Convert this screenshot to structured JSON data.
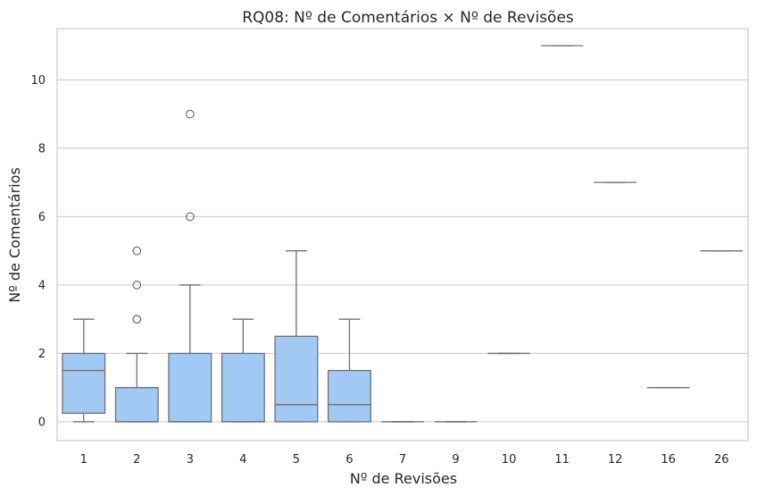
{
  "chart_data": {
    "type": "box",
    "title": "RQ08: Nº de Comentários × Nº de Revisões",
    "xlabel": "Nº de Revisões",
    "ylabel": "Nº de Comentários",
    "categories": [
      "1",
      "2",
      "3",
      "4",
      "5",
      "6",
      "7",
      "9",
      "10",
      "11",
      "12",
      "16",
      "26"
    ],
    "ylim": [
      -0.55,
      11.5
    ],
    "yticks": [
      0,
      2,
      4,
      6,
      8,
      10
    ],
    "grid": "horizontal",
    "box_color": "#a1c9f4",
    "line_color": "#707070",
    "boxes": [
      {
        "category": "1",
        "whisker_low": 0,
        "q1": 0.25,
        "median": 1.5,
        "q3": 2,
        "whisker_high": 3,
        "outliers": []
      },
      {
        "category": "2",
        "whisker_low": 0,
        "q1": 0,
        "median": 0,
        "q3": 1,
        "whisker_high": 2,
        "outliers": [
          3,
          3,
          4,
          5
        ]
      },
      {
        "category": "3",
        "whisker_low": 0,
        "q1": 0,
        "median": 0,
        "q3": 2,
        "whisker_high": 4,
        "outliers": [
          6,
          9
        ]
      },
      {
        "category": "4",
        "whisker_low": 0,
        "q1": 0,
        "median": 0,
        "q3": 2,
        "whisker_high": 3,
        "outliers": []
      },
      {
        "category": "5",
        "whisker_low": 0,
        "q1": 0,
        "median": 0.5,
        "q3": 2.5,
        "whisker_high": 5,
        "outliers": []
      },
      {
        "category": "6",
        "whisker_low": 0,
        "q1": 0,
        "median": 0.5,
        "q3": 1.5,
        "whisker_high": 3,
        "outliers": []
      },
      {
        "category": "7",
        "whisker_low": 0,
        "q1": 0,
        "median": 0,
        "q3": 0,
        "whisker_high": 0,
        "outliers": []
      },
      {
        "category": "9",
        "whisker_low": 0,
        "q1": 0,
        "median": 0,
        "q3": 0,
        "whisker_high": 0,
        "outliers": []
      },
      {
        "category": "10",
        "whisker_low": 2,
        "q1": 2,
        "median": 2,
        "q3": 2,
        "whisker_high": 2,
        "outliers": []
      },
      {
        "category": "11",
        "whisker_low": 11,
        "q1": 11,
        "median": 11,
        "q3": 11,
        "whisker_high": 11,
        "outliers": []
      },
      {
        "category": "12",
        "whisker_low": 7,
        "q1": 7,
        "median": 7,
        "q3": 7,
        "whisker_high": 7,
        "outliers": []
      },
      {
        "category": "16",
        "whisker_low": 1,
        "q1": 1,
        "median": 1,
        "q3": 1,
        "whisker_high": 1,
        "outliers": []
      },
      {
        "category": "26",
        "whisker_low": 5,
        "q1": 5,
        "median": 5,
        "q3": 5,
        "whisker_high": 5,
        "outliers": []
      }
    ]
  }
}
